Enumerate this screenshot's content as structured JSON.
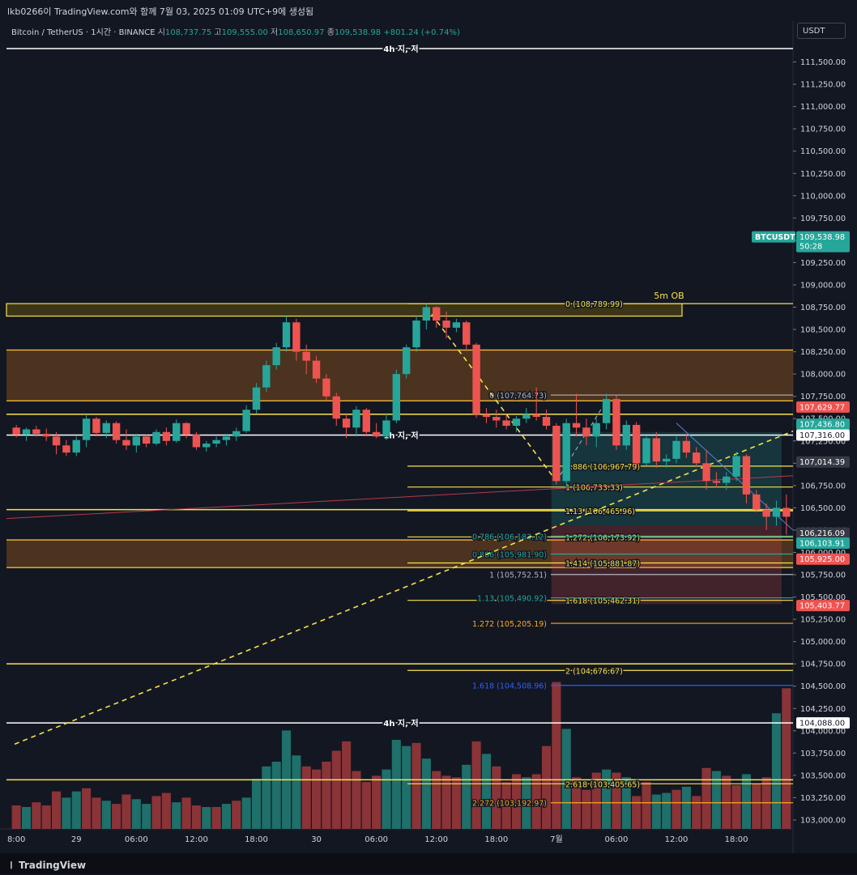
{
  "header": {
    "caption": "lkb0266이 TradingView.com와 함께 7월 03, 2025 01:09 UTC+9에 생성됨",
    "symbol": "Bitcoin / TetherUS · 1시간 · BINANCE",
    "open_label": "시",
    "open": "108,737.75",
    "high_label": "고",
    "high": "109,555.00",
    "low_label": "저",
    "low": "108,650.97",
    "close_label": "종",
    "close": "109,538.98",
    "change": "+801.24 (+0.74%)",
    "currency": "USDT"
  },
  "footer": {
    "logo": "TradingView"
  },
  "colors": {
    "background": "#131722",
    "up": "#26a69a",
    "down": "#ef5350",
    "up_volume": "#1f6f6a",
    "down_volume": "#8a3438",
    "level_yellow": "#f7e24c",
    "zone_orange": "#7a4a1e",
    "fib_orange": "#ffa726",
    "fib_green": "#26a69a",
    "fib_blue": "#2962ff",
    "fib_gray": "#b2b5be"
  },
  "chart_data": {
    "type": "candlestick",
    "interval": "1h",
    "y_axis": {
      "range": [
        102900,
        111750
      ],
      "ticks": [
        103000,
        103250,
        103500,
        103750,
        104000,
        104250,
        104500,
        104750,
        105000,
        105250,
        105500,
        105750,
        106000,
        106250,
        106500,
        106750,
        107000,
        107250,
        107500,
        107750,
        108000,
        108250,
        108500,
        108750,
        109000,
        109250,
        109500,
        109750,
        110000,
        110250,
        110500,
        110750,
        111000,
        111250,
        111500
      ],
      "tick_labels": [
        "103,000.00",
        "103,250.00",
        "103,500.00",
        "103,750.00",
        "104,000.00",
        "104,250.00",
        "104,500.00",
        "104,750.00",
        "105,000.00",
        "105,250.00",
        "105,500.00",
        "105,750.00",
        "106,000.00",
        "106,250.00",
        "106,500.00",
        "106,750.00",
        "107,000.00",
        "107,250.00",
        "107,500.00",
        "107,750.00",
        "108,000.00",
        "108,250.00",
        "108,500.00",
        "108,750.00",
        "109,000.00",
        "109,250.00",
        "109,500.00",
        "109,750.00",
        "110,000.00",
        "110,250.00",
        "110,500.00",
        "110,750.00",
        "111,000.00",
        "111,250.00",
        "111,500.00"
      ]
    },
    "x_axis": {
      "bar_count": 78,
      "ticks": [
        {
          "bar": 0,
          "label": "8:00"
        },
        {
          "bar": 6,
          "label": "29"
        },
        {
          "bar": 12,
          "label": "06:00"
        },
        {
          "bar": 18,
          "label": "12:00"
        },
        {
          "bar": 24,
          "label": "18:00"
        },
        {
          "bar": 30,
          "label": "30"
        },
        {
          "bar": 36,
          "label": "06:00"
        },
        {
          "bar": 42,
          "label": "12:00"
        },
        {
          "bar": 48,
          "label": "18:00"
        },
        {
          "bar": 54,
          "label": "7월"
        },
        {
          "bar": 60,
          "label": "06:00"
        },
        {
          "bar": 66,
          "label": "12:00"
        },
        {
          "bar": 72,
          "label": "18:00"
        }
      ]
    },
    "candles": [
      [
        107400,
        107430,
        107290,
        107320
      ],
      [
        107320,
        107400,
        107250,
        107380
      ],
      [
        107380,
        107420,
        107300,
        107330
      ],
      [
        107330,
        107390,
        107250,
        107300
      ],
      [
        107300,
        107350,
        107100,
        107200
      ],
      [
        107200,
        107260,
        107080,
        107120
      ],
      [
        107120,
        107300,
        107080,
        107260
      ],
      [
        107260,
        107550,
        107180,
        107500
      ],
      [
        107500,
        107520,
        107300,
        107340
      ],
      [
        107340,
        107480,
        107280,
        107450
      ],
      [
        107450,
        107470,
        107220,
        107260
      ],
      [
        107260,
        107380,
        107150,
        107200
      ],
      [
        107200,
        107330,
        107120,
        107300
      ],
      [
        107300,
        107320,
        107180,
        107220
      ],
      [
        107220,
        107380,
        107200,
        107350
      ],
      [
        107350,
        107400,
        107200,
        107250
      ],
      [
        107250,
        107490,
        107230,
        107450
      ],
      [
        107450,
        107460,
        107280,
        107320
      ],
      [
        107320,
        107350,
        107150,
        107180
      ],
      [
        107180,
        107250,
        107130,
        107220
      ],
      [
        107220,
        107300,
        107180,
        107260
      ],
      [
        107260,
        107330,
        107200,
        107300
      ],
      [
        107300,
        107400,
        107250,
        107360
      ],
      [
        107360,
        107650,
        107340,
        107600
      ],
      [
        107600,
        107900,
        107560,
        107850
      ],
      [
        107850,
        108150,
        107800,
        108100
      ],
      [
        108100,
        108350,
        108050,
        108300
      ],
      [
        108300,
        108650,
        108250,
        108580
      ],
      [
        108580,
        108620,
        108150,
        108250
      ],
      [
        108250,
        108330,
        108000,
        108150
      ],
      [
        108150,
        108200,
        107900,
        107950
      ],
      [
        107950,
        108000,
        107700,
        107750
      ],
      [
        107750,
        107790,
        107420,
        107500
      ],
      [
        107500,
        107560,
        107280,
        107400
      ],
      [
        107400,
        107640,
        107300,
        107600
      ],
      [
        107600,
        107620,
        107300,
        107350
      ],
      [
        107350,
        107450,
        107280,
        107300
      ],
      [
        107300,
        107560,
        107260,
        107480
      ],
      [
        107480,
        108050,
        107450,
        108000
      ],
      [
        108000,
        108330,
        107950,
        108300
      ],
      [
        108300,
        108660,
        108250,
        108600
      ],
      [
        108600,
        108790,
        108500,
        108750
      ],
      [
        108750,
        108760,
        108520,
        108600
      ],
      [
        108600,
        108700,
        108400,
        108520
      ],
      [
        108520,
        108620,
        108470,
        108580
      ],
      [
        108580,
        108600,
        108280,
        108330
      ],
      [
        108330,
        108350,
        107510,
        107550
      ],
      [
        107550,
        107620,
        107450,
        107520
      ],
      [
        107520,
        107600,
        107400,
        107480
      ],
      [
        107480,
        107550,
        107380,
        107420
      ],
      [
        107420,
        107530,
        107350,
        107500
      ],
      [
        107500,
        107620,
        107450,
        107550
      ],
      [
        107550,
        107850,
        107480,
        107520
      ],
      [
        107520,
        107600,
        107380,
        107420
      ],
      [
        107420,
        107450,
        106760,
        106800
      ],
      [
        106800,
        107500,
        106733,
        107450
      ],
      [
        107450,
        107780,
        107300,
        107400
      ],
      [
        107400,
        107500,
        107200,
        107300
      ],
      [
        107300,
        107500,
        107180,
        107450
      ],
      [
        107450,
        107780,
        107380,
        107720
      ],
      [
        107720,
        107760,
        107150,
        107200
      ],
      [
        107200,
        107480,
        107150,
        107430
      ],
      [
        107430,
        107460,
        106950,
        107000
      ],
      [
        107000,
        107300,
        106970,
        107280
      ],
      [
        107280,
        107350,
        106950,
        107020
      ],
      [
        107020,
        107100,
        106950,
        107050
      ],
      [
        107050,
        107300,
        107000,
        107250
      ],
      [
        107250,
        107330,
        107060,
        107120
      ],
      [
        107120,
        107180,
        106960,
        107000
      ],
      [
        107000,
        107150,
        106700,
        106800
      ],
      [
        106800,
        106900,
        106730,
        106780
      ],
      [
        106780,
        106900,
        106700,
        106850
      ],
      [
        106850,
        107130,
        106800,
        107080
      ],
      [
        107080,
        107100,
        106550,
        106650
      ],
      [
        106650,
        106700,
        106450,
        106480
      ],
      [
        106480,
        106550,
        106250,
        106400
      ],
      [
        106400,
        106580,
        106300,
        106500
      ],
      [
        106500,
        106650,
        106200,
        106400
      ]
    ],
    "volume": [
      [
        15,
        "down"
      ],
      [
        14,
        "up"
      ],
      [
        17,
        "down"
      ],
      [
        15,
        "down"
      ],
      [
        24,
        "down"
      ],
      [
        20,
        "up"
      ],
      [
        24,
        "up"
      ],
      [
        26,
        "down"
      ],
      [
        20,
        "down"
      ],
      [
        18,
        "up"
      ],
      [
        16,
        "down"
      ],
      [
        22,
        "down"
      ],
      [
        19,
        "up"
      ],
      [
        16,
        "up"
      ],
      [
        21,
        "down"
      ],
      [
        23,
        "down"
      ],
      [
        17,
        "up"
      ],
      [
        20,
        "down"
      ],
      [
        15,
        "down"
      ],
      [
        14,
        "up"
      ],
      [
        14,
        "down"
      ],
      [
        16,
        "up"
      ],
      [
        18,
        "down"
      ],
      [
        20,
        "up"
      ],
      [
        32,
        "up"
      ],
      [
        40,
        "up"
      ],
      [
        43,
        "up"
      ],
      [
        63,
        "up"
      ],
      [
        47,
        "up"
      ],
      [
        40,
        "down"
      ],
      [
        38,
        "down"
      ],
      [
        43,
        "down"
      ],
      [
        50,
        "down"
      ],
      [
        56,
        "down"
      ],
      [
        37,
        "down"
      ],
      [
        30,
        "down"
      ],
      [
        34,
        "down"
      ],
      [
        38,
        "up"
      ],
      [
        57,
        "up"
      ],
      [
        53,
        "up"
      ],
      [
        55,
        "down"
      ],
      [
        45,
        "up"
      ],
      [
        37,
        "down"
      ],
      [
        34,
        "down"
      ],
      [
        33,
        "down"
      ],
      [
        41,
        "up"
      ],
      [
        56,
        "down"
      ],
      [
        48,
        "up"
      ],
      [
        40,
        "down"
      ],
      [
        30,
        "down"
      ],
      [
        35,
        "down"
      ],
      [
        33,
        "up"
      ],
      [
        35,
        "down"
      ],
      [
        53,
        "down"
      ],
      [
        94,
        "down"
      ],
      [
        64,
        "up"
      ],
      [
        33,
        "down"
      ],
      [
        25,
        "down"
      ],
      [
        36,
        "down"
      ],
      [
        38,
        "up"
      ],
      [
        36,
        "down"
      ],
      [
        33,
        "up"
      ],
      [
        21,
        "down"
      ],
      [
        30,
        "down"
      ],
      [
        22,
        "up"
      ],
      [
        23,
        "up"
      ],
      [
        25,
        "down"
      ],
      [
        27,
        "up"
      ],
      [
        21,
        "down"
      ],
      [
        39,
        "down"
      ],
      [
        37,
        "up"
      ],
      [
        34,
        "down"
      ],
      [
        28,
        "down"
      ],
      [
        35,
        "up"
      ],
      [
        29,
        "down"
      ],
      [
        33,
        "down"
      ],
      [
        74,
        "up"
      ],
      [
        90,
        "down"
      ]
    ],
    "zones": [
      {
        "from": 108650,
        "to": 108790,
        "label": "5m OB",
        "color": "#f7e24c"
      },
      {
        "from": 107700,
        "to": 108270,
        "color": "#7a4a1e"
      },
      {
        "from": 105830,
        "to": 106140,
        "color": "#7a4a1e"
      }
    ],
    "levels": [
      {
        "price": 111650,
        "label": "4h 지, 저",
        "color": "#ffffff"
      },
      {
        "price": 107316,
        "label": "1h 지, 저",
        "color": "#ffffff"
      },
      {
        "price": 104088,
        "label": "4h 지, 저",
        "color": "#ffffff"
      },
      {
        "price": 107550,
        "color": "#f7e24c"
      },
      {
        "price": 106480,
        "color": "#f7e24c"
      },
      {
        "price": 104750,
        "color": "#f7e24c"
      },
      {
        "price": 103450,
        "color": "#f7e24c"
      }
    ],
    "fib_levels": [
      {
        "price": 108789.99,
        "label": "0 (108,789.99)",
        "color": "#f7e24c"
      },
      {
        "price": 106967.79,
        "label": "0.886 (106,967.79)",
        "color": "#f7e24c"
      },
      {
        "price": 106733.33,
        "label": "1 (106,733.33)",
        "color": "#f7e24c"
      },
      {
        "price": 106465.96,
        "label": "1.13 (106,465.96)",
        "color": "#f7e24c"
      },
      {
        "price": 106173.92,
        "label": "1.272 (106,173.92)",
        "color": "#f7e24c"
      },
      {
        "price": 105881.87,
        "label": "1.414 (105,881.87)",
        "color": "#f7e24c"
      },
      {
        "price": 105462.31,
        "label": "1.618 (105,462.31)",
        "color": "#f7e24c"
      },
      {
        "price": 104676.67,
        "label": "2 (104,676.67)",
        "color": "#f7e24c"
      },
      {
        "price": 103405.65,
        "label": "2.618 (103,405.65)",
        "color": "#f7e24c"
      },
      {
        "price": 107764.73,
        "label": "0 (107,764.73)",
        "color": "#b2b5be"
      },
      {
        "price": 106183.12,
        "label": "0.786 (106,183.12)",
        "color": "#26a69a"
      },
      {
        "price": 105981.9,
        "label": "0.886 (105,981.90)",
        "color": "#26a69a"
      },
      {
        "price": 105752.51,
        "label": "1 (105,752.51)",
        "color": "#b2b5be"
      },
      {
        "price": 105490.92,
        "label": "1.13 (105,490.92)",
        "color": "#26a69a"
      },
      {
        "price": 105205.19,
        "label": "1.272 (105,205.19)",
        "color": "#ffa726"
      },
      {
        "price": 104508.96,
        "label": "1.618 (104,508.96)",
        "color": "#2962ff"
      },
      {
        "price": 103192.97,
        "label": "2.272 (103,192.97)",
        "color": "#ffa726"
      }
    ],
    "price_labels": [
      {
        "price": 109538.98,
        "text": "109,538.98",
        "sub": "50:28",
        "name": "BTCUSDT",
        "bg": "#26a69a"
      },
      {
        "price": 107629.77,
        "text": "107,629.77",
        "bg": "#ef5350"
      },
      {
        "price": 107436.8,
        "text": "107,436.80",
        "bg": "#26a69a"
      },
      {
        "price": 107316.0,
        "text": "107,316.00",
        "bg": "#ffffff"
      },
      {
        "price": 107014.39,
        "text": "107,014.39",
        "bg": "#363a45"
      },
      {
        "price": 106216.09,
        "text": "106,216.09",
        "bg": "#363a45"
      },
      {
        "price": 106103.91,
        "text": "106,103.91",
        "bg": "#26a69a"
      },
      {
        "price": 105925.0,
        "text": "105,925.00",
        "bg": "#ef5350"
      },
      {
        "price": 105403.77,
        "text": "105,403.77",
        "bg": "#ef5350"
      },
      {
        "price": 104088.0,
        "text": "104,088.00",
        "bg": "#ffffff"
      }
    ],
    "position": {
      "entry": 106300,
      "target": 107350,
      "stop": 105420,
      "from_bar": 54
    }
  }
}
